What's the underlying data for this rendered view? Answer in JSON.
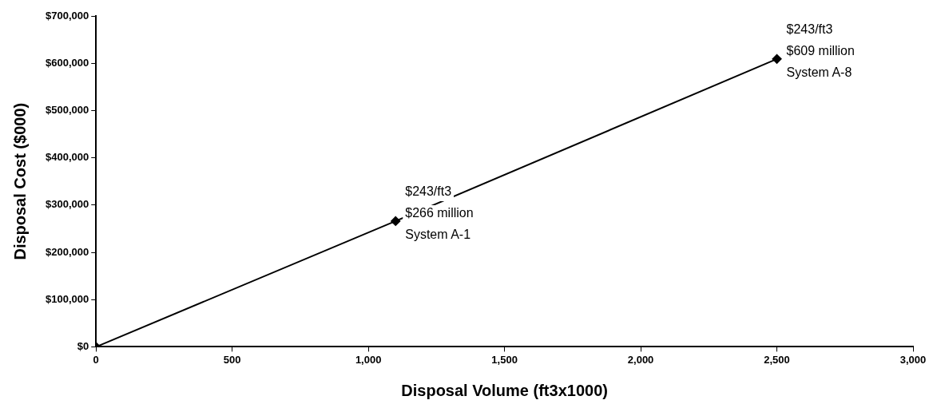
{
  "chart_data": {
    "type": "line",
    "xlabel": "Disposal Volume (ft3x1000)",
    "ylabel": "Disposal Cost ($000)",
    "x": [
      0,
      1100,
      2500
    ],
    "series": [
      {
        "color": "#000000",
        "values": [
          0,
          266000,
          609000
        ]
      }
    ],
    "xlim": [
      0,
      3000
    ],
    "xticks": [
      0,
      500,
      {
        "value": 1000,
        "label": "1,000"
      },
      {
        "value": 1500,
        "label": "1,500"
      },
      {
        "value": 2000,
        "label": "2,000"
      },
      {
        "value": 2500,
        "label": "2,500"
      },
      {
        "value": 3000,
        "label": "3,000"
      }
    ],
    "ylim": [
      0,
      700000
    ],
    "yticks": [
      {
        "value": 0,
        "label": "$0"
      },
      {
        "value": 100000,
        "label": "$100,000"
      },
      {
        "value": 200000,
        "label": "$200,000"
      },
      {
        "value": 300000,
        "label": "$300,000"
      },
      {
        "value": 400000,
        "label": "$400,000"
      },
      {
        "value": 500000,
        "label": "$500,000"
      },
      {
        "value": 600000,
        "label": "$600,000"
      },
      {
        "value": 700000,
        "label": "$700,000"
      }
    ],
    "annotations": [
      {
        "text": "$243/ft3\n$266 million\nSystem A-1",
        "x": 1100,
        "y": 266000
      },
      {
        "text": "$243/ft3\n$609 million\nSystem A-8",
        "x": 2500,
        "y": 609000
      }
    ],
    "grid": false,
    "legend": false,
    "marker": "diamond",
    "line_style": "solid"
  }
}
